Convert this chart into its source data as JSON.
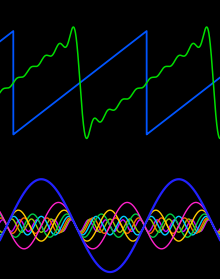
{
  "background_color": "#000000",
  "top_panel": {
    "sawtooth_color": "#0055ff",
    "fourier_color": "#00dd00",
    "num_harmonics": 9,
    "xlim_start": -0.1,
    "xlim_end": 1.55,
    "ylim": [
      -1.6,
      1.6
    ],
    "period": 1.0
  },
  "bottom_panel": {
    "harmonic_colors": [
      "#2222ff",
      "#ff22cc",
      "#ffcc00",
      "#00cc44",
      "#00ccff",
      "#ff6600",
      "#99cc00",
      "#cc00ff"
    ],
    "num_harmonics": 8,
    "xlim_start": -0.05,
    "xlim_end": 1.55,
    "ylim": [
      -1.15,
      1.15
    ],
    "period": 1.0
  }
}
